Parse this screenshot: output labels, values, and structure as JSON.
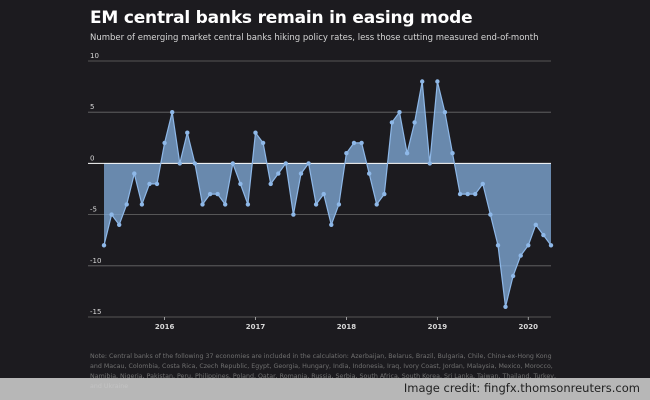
{
  "title": "EM central banks remain in easing mode",
  "subtitle": "Number of emerging market central banks hiking policy rates, less those cutting measured end-of-month",
  "note": "Note: Central banks of the following 37 economies are included in the calculation: Azerbaijan, Belarus, Brazil, Bulgaria, Chile, China-ex-Hong Kong and Macau, Colombia, Costa Rica, Czech Republic, Egypt, Georgia, Hungary, India, Indonesia, Iraq, Ivory Coast, Jordan, Malaysia, Mexico, Morocco, Namibia, Nigeria, Pakistan, Peru, Philippines, Poland, Qatar, Romania, Russia, Serbia, South Africa, South Korea, Sri Lanka, Taiwan, Thailand, Turkey, and Ukraine",
  "credit": "Image credit: fingfx.thomsonreuters.com",
  "colors": {
    "background": "#1c1b1f",
    "area_fill": "#7fa8d6",
    "line": "#8eb8e8",
    "zero_line": "#ffffff",
    "grid": "#6a6a6a"
  },
  "chart_data": {
    "type": "area",
    "title": "EM central banks remain in easing mode",
    "subtitle": "Number of emerging market central banks hiking policy rates, less those cutting measured end-of-month",
    "x_start": "2015-05",
    "x_ticks": [
      "2016",
      "2017",
      "2018",
      "2019",
      "2020"
    ],
    "y_ticks": [
      10,
      5,
      0,
      -5,
      -10,
      -15
    ],
    "ylim": [
      -15,
      10
    ],
    "grid": true,
    "series": [
      {
        "values": [
          -8,
          -5,
          -6,
          -4,
          -1,
          -4,
          -2,
          -2,
          2,
          5,
          0,
          3,
          0,
          -4,
          -3,
          -3,
          -4,
          0,
          -2,
          -4,
          3,
          2,
          -2,
          -1,
          0,
          -5,
          -1,
          0,
          -4,
          -3,
          -6,
          -4,
          1,
          2,
          2,
          -1,
          -4,
          -3,
          4,
          5,
          1,
          4,
          8,
          0,
          8,
          5,
          1,
          -3,
          -3,
          -3,
          -2,
          -5,
          -8,
          -14,
          -11,
          -9,
          -8,
          -6,
          -7,
          -8
        ]
      }
    ]
  }
}
